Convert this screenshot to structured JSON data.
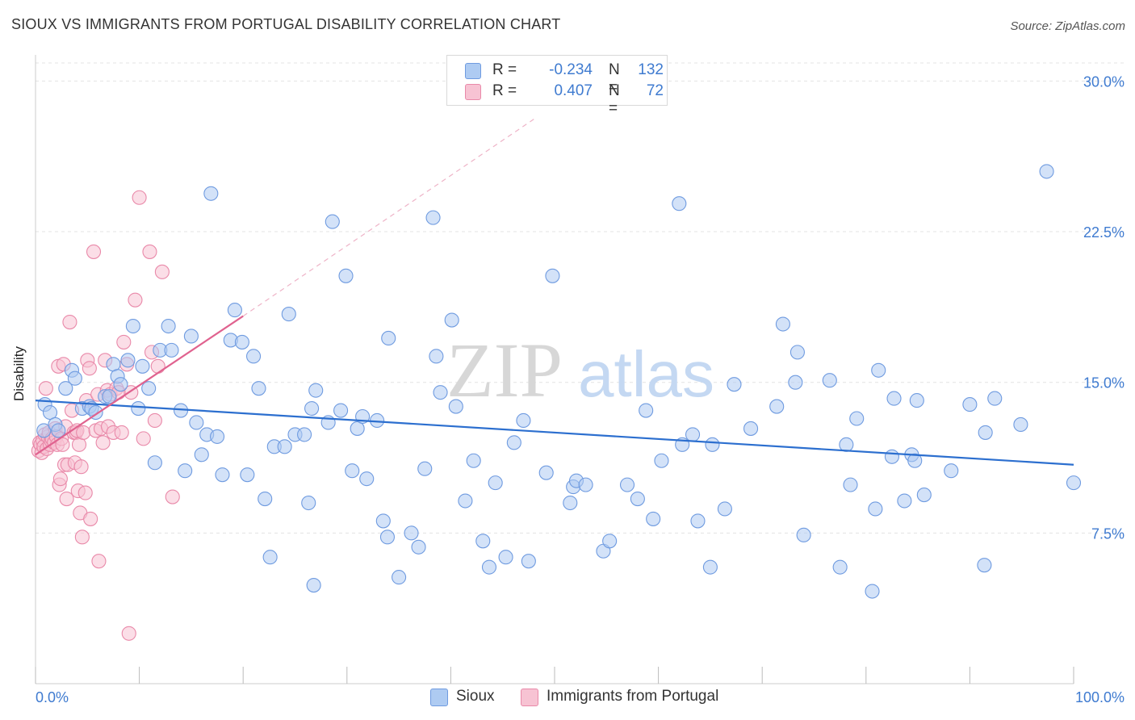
{
  "title": "SIOUX VS IMMIGRANTS FROM PORTUGAL DISABILITY CORRELATION CHART",
  "source": "Source: ZipAtlas.com",
  "watermark": {
    "zip": "ZIP",
    "atlas": "atlas"
  },
  "legend": {
    "r_label": "R =",
    "n_label": "N =",
    "rows": [
      {
        "name": "Sioux",
        "r": "-0.234",
        "n": "132",
        "fill": "#aecbf2",
        "stroke": "#6f9be0"
      },
      {
        "name": "Immigrants from Portugal",
        "r": "0.407",
        "n": "72",
        "fill": "#f7c3d3",
        "stroke": "#e989a9"
      }
    ]
  },
  "chart_data": {
    "type": "scatter",
    "title": "SIOUX VS IMMIGRANTS FROM PORTUGAL DISABILITY CORRELATION CHART",
    "xlabel": "",
    "ylabel": "Disability",
    "xlim": [
      0,
      100
    ],
    "ylim": [
      0,
      30.9
    ],
    "x_tick_labels": [
      "0.0%",
      "100.0%"
    ],
    "y_ticks": [
      7.5,
      15.0,
      22.5,
      30.0
    ],
    "y_tick_labels": [
      "7.5%",
      "15.0%",
      "22.5%",
      "30.0%"
    ],
    "grid": true,
    "legend_position": "bottom",
    "series": [
      {
        "name": "Sioux",
        "color": "#6f9be0",
        "fill": "#aecbf2",
        "line_color": "#2c6fcf",
        "trend": {
          "x": [
            0,
            100
          ],
          "y": [
            14.1,
            10.9
          ]
        },
        "points": [
          [
            0.8,
            12.6
          ],
          [
            0.9,
            13.9
          ],
          [
            1.4,
            13.5
          ],
          [
            1.9,
            12.9
          ],
          [
            2.2,
            12.6
          ],
          [
            2.9,
            14.7
          ],
          [
            3.5,
            15.6
          ],
          [
            3.8,
            15.2
          ],
          [
            4.5,
            13.7
          ],
          [
            5.2,
            13.8
          ],
          [
            5.4,
            13.7
          ],
          [
            5.8,
            13.5
          ],
          [
            6.7,
            14.3
          ],
          [
            7.1,
            14.3
          ],
          [
            7.5,
            15.9
          ],
          [
            7.9,
            15.3
          ],
          [
            8.2,
            14.9
          ],
          [
            8.9,
            16.1
          ],
          [
            9.4,
            17.8
          ],
          [
            9.9,
            13.7
          ],
          [
            10.3,
            15.8
          ],
          [
            10.9,
            14.7
          ],
          [
            11.5,
            11.0
          ],
          [
            12.0,
            16.6
          ],
          [
            12.8,
            17.8
          ],
          [
            13.1,
            16.6
          ],
          [
            14.0,
            13.6
          ],
          [
            14.4,
            10.6
          ],
          [
            15.0,
            17.3
          ],
          [
            15.5,
            13.0
          ],
          [
            16.0,
            11.4
          ],
          [
            16.5,
            12.4
          ],
          [
            16.9,
            24.4
          ],
          [
            17.5,
            12.3
          ],
          [
            18.0,
            10.4
          ],
          [
            18.8,
            17.1
          ],
          [
            19.2,
            18.6
          ],
          [
            19.9,
            17.0
          ],
          [
            20.4,
            10.4
          ],
          [
            21.0,
            16.3
          ],
          [
            21.5,
            14.7
          ],
          [
            22.1,
            9.2
          ],
          [
            22.6,
            6.3
          ],
          [
            23.0,
            11.8
          ],
          [
            24.0,
            11.8
          ],
          [
            24.4,
            18.4
          ],
          [
            25.0,
            12.4
          ],
          [
            25.9,
            12.4
          ],
          [
            26.3,
            9.0
          ],
          [
            26.6,
            13.7
          ],
          [
            26.8,
            4.9
          ],
          [
            27.0,
            14.6
          ],
          [
            28.2,
            13.0
          ],
          [
            28.6,
            23.0
          ],
          [
            29.4,
            13.6
          ],
          [
            29.9,
            20.3
          ],
          [
            30.5,
            10.6
          ],
          [
            31.0,
            12.7
          ],
          [
            31.5,
            13.3
          ],
          [
            31.9,
            10.2
          ],
          [
            32.9,
            13.1
          ],
          [
            33.5,
            8.1
          ],
          [
            33.9,
            7.3
          ],
          [
            34.0,
            17.2
          ],
          [
            35.0,
            5.3
          ],
          [
            36.2,
            7.5
          ],
          [
            36.9,
            6.8
          ],
          [
            37.5,
            10.7
          ],
          [
            38.3,
            23.2
          ],
          [
            38.6,
            16.3
          ],
          [
            39.0,
            14.5
          ],
          [
            40.1,
            18.1
          ],
          [
            40.5,
            13.8
          ],
          [
            41.4,
            9.1
          ],
          [
            42.2,
            11.1
          ],
          [
            43.1,
            7.1
          ],
          [
            43.7,
            5.8
          ],
          [
            44.3,
            10.0
          ],
          [
            45.3,
            6.3
          ],
          [
            46.1,
            12.0
          ],
          [
            47.0,
            13.1
          ],
          [
            47.5,
            6.1
          ],
          [
            49.2,
            10.5
          ],
          [
            49.8,
            20.3
          ],
          [
            51.5,
            9.0
          ],
          [
            51.8,
            9.8
          ],
          [
            52.1,
            10.1
          ],
          [
            53.0,
            9.9
          ],
          [
            54.7,
            6.6
          ],
          [
            55.3,
            7.1
          ],
          [
            57.0,
            9.9
          ],
          [
            58.0,
            9.2
          ],
          [
            58.8,
            13.6
          ],
          [
            59.5,
            8.2
          ],
          [
            60.3,
            11.1
          ],
          [
            62.0,
            23.9
          ],
          [
            62.3,
            11.9
          ],
          [
            63.3,
            12.4
          ],
          [
            63.8,
            8.1
          ],
          [
            65.0,
            5.8
          ],
          [
            65.2,
            11.9
          ],
          [
            66.4,
            8.7
          ],
          [
            67.3,
            14.9
          ],
          [
            68.9,
            12.7
          ],
          [
            71.4,
            13.8
          ],
          [
            72.0,
            17.9
          ],
          [
            73.2,
            15.0
          ],
          [
            73.4,
            16.5
          ],
          [
            74.0,
            7.4
          ],
          [
            76.5,
            15.1
          ],
          [
            77.5,
            5.8
          ],
          [
            78.1,
            11.9
          ],
          [
            78.5,
            9.9
          ],
          [
            79.1,
            13.2
          ],
          [
            80.6,
            4.6
          ],
          [
            80.9,
            8.7
          ],
          [
            81.2,
            15.6
          ],
          [
            82.5,
            11.3
          ],
          [
            82.7,
            14.2
          ],
          [
            83.7,
            9.1
          ],
          [
            84.4,
            11.4
          ],
          [
            84.7,
            11.1
          ],
          [
            84.9,
            14.1
          ],
          [
            85.6,
            9.4
          ],
          [
            88.2,
            10.6
          ],
          [
            90.0,
            13.9
          ],
          [
            91.4,
            5.9
          ],
          [
            91.5,
            12.5
          ],
          [
            92.4,
            14.2
          ],
          [
            94.9,
            12.9
          ],
          [
            97.4,
            25.5
          ],
          [
            100.0,
            10.0
          ]
        ]
      },
      {
        "name": "Immigrants from Portugal",
        "color": "#e989a9",
        "fill": "#f7c3d3",
        "line_color": "#e0628f",
        "trend": {
          "x": [
            0,
            20
          ],
          "y": [
            11.4,
            18.3
          ]
        },
        "trend_extension": {
          "x": [
            20,
            48
          ],
          "y": [
            18.3,
            28.1
          ]
        },
        "points": [
          [
            0.3,
            11.6
          ],
          [
            0.4,
            12.0
          ],
          [
            0.5,
            11.9
          ],
          [
            0.6,
            11.5
          ],
          [
            0.7,
            12.1
          ],
          [
            0.8,
            11.8
          ],
          [
            0.9,
            12.4
          ],
          [
            1.0,
            14.7
          ],
          [
            1.1,
            11.7
          ],
          [
            1.2,
            12.3
          ],
          [
            1.3,
            12.5
          ],
          [
            1.4,
            11.9
          ],
          [
            1.5,
            12.1
          ],
          [
            1.6,
            12.2
          ],
          [
            1.8,
            12.0
          ],
          [
            1.9,
            12.7
          ],
          [
            2.0,
            12.3
          ],
          [
            2.1,
            11.9
          ],
          [
            2.2,
            15.8
          ],
          [
            2.3,
            9.9
          ],
          [
            2.4,
            10.2
          ],
          [
            2.5,
            12.2
          ],
          [
            2.6,
            11.9
          ],
          [
            2.7,
            15.9
          ],
          [
            2.8,
            10.9
          ],
          [
            2.9,
            12.8
          ],
          [
            3.0,
            9.2
          ],
          [
            3.1,
            10.9
          ],
          [
            3.3,
            18.0
          ],
          [
            3.5,
            13.6
          ],
          [
            3.7,
            12.5
          ],
          [
            3.8,
            11.0
          ],
          [
            3.9,
            12.5
          ],
          [
            4.0,
            12.6
          ],
          [
            4.1,
            9.6
          ],
          [
            4.2,
            11.9
          ],
          [
            4.3,
            8.5
          ],
          [
            4.4,
            10.8
          ],
          [
            4.5,
            7.3
          ],
          [
            4.6,
            12.5
          ],
          [
            4.8,
            9.5
          ],
          [
            4.9,
            14.1
          ],
          [
            5.0,
            16.1
          ],
          [
            5.2,
            15.7
          ],
          [
            5.3,
            8.2
          ],
          [
            5.6,
            21.5
          ],
          [
            5.8,
            12.6
          ],
          [
            6.0,
            14.4
          ],
          [
            6.1,
            6.1
          ],
          [
            6.3,
            12.7
          ],
          [
            6.5,
            12.0
          ],
          [
            6.7,
            16.1
          ],
          [
            6.9,
            14.6
          ],
          [
            7.0,
            12.8
          ],
          [
            7.2,
            14.4
          ],
          [
            7.5,
            12.5
          ],
          [
            7.8,
            14.7
          ],
          [
            8.0,
            14.5
          ],
          [
            8.3,
            12.5
          ],
          [
            8.5,
            17.0
          ],
          [
            8.8,
            15.9
          ],
          [
            9.0,
            2.5
          ],
          [
            9.2,
            14.5
          ],
          [
            9.6,
            19.1
          ],
          [
            10.0,
            24.2
          ],
          [
            10.4,
            12.2
          ],
          [
            11.0,
            21.5
          ],
          [
            11.2,
            16.5
          ],
          [
            11.5,
            13.1
          ],
          [
            11.8,
            15.8
          ],
          [
            12.2,
            20.5
          ],
          [
            13.2,
            9.3
          ]
        ]
      }
    ]
  }
}
